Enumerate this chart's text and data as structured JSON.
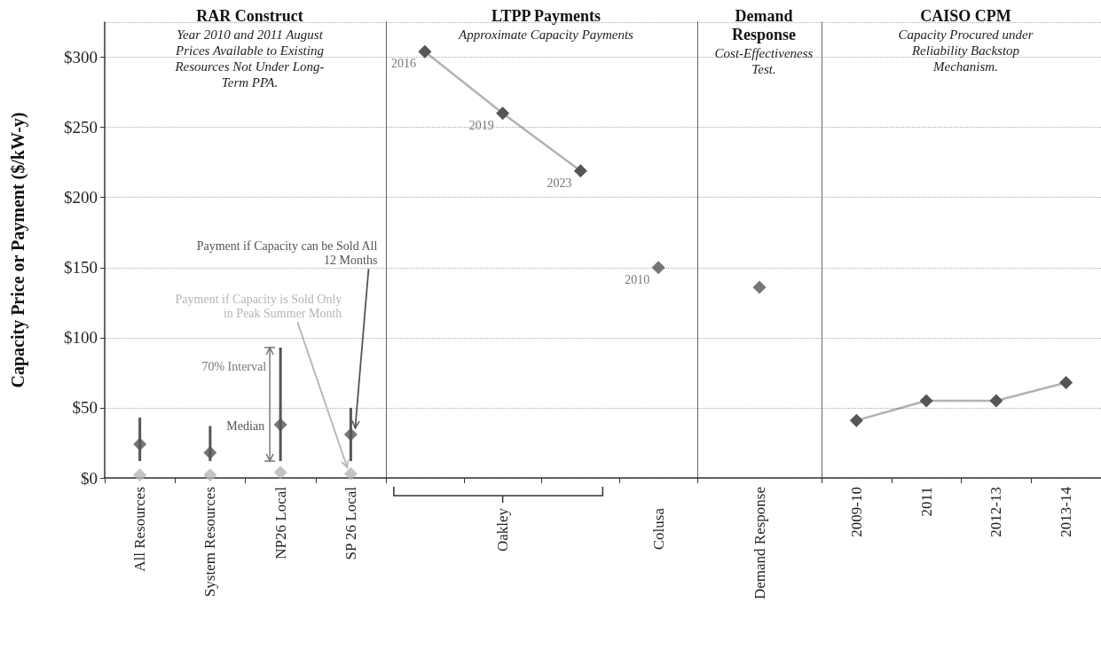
{
  "chart_data": [
    {
      "type": "scatter",
      "title": "RAR Construct",
      "subtitle": "Year 2010 and 2011 August Prices Available to Existing Resources Not Under Long-Term PPA.",
      "ylabel": "Capacity Price or Payment ($/kW-y)",
      "categories": [
        "All Resources",
        "System Resources",
        "NP26 Local",
        "SP 26 Local"
      ],
      "series": [
        {
          "color": "#555555",
          "values": [
            24,
            18,
            38,
            31
          ],
          "errors": [
            [
              12,
              43
            ],
            [
              12,
              37
            ],
            [
              12,
              93
            ],
            [
              12,
              50
            ]
          ]
        },
        {
          "color": "#b5b5b5",
          "values": [
            2,
            2,
            4,
            3
          ]
        }
      ],
      "ylim": [
        0,
        325
      ],
      "yticks": [
        {
          "value": 0,
          "label": "$0"
        },
        {
          "value": 50,
          "label": "$50"
        },
        {
          "value": 100,
          "label": "$100"
        },
        {
          "value": 150,
          "label": "$150"
        },
        {
          "value": 200,
          "label": "$200"
        },
        {
          "value": 250,
          "label": "$250"
        },
        {
          "value": 300,
          "label": "$300"
        }
      ],
      "grid": "y",
      "marker": "diamond",
      "annotations": [
        {
          "text": "Payment if Capacity can be Sold All 12 Months",
          "x": "SP 26 Local",
          "y": 31
        },
        {
          "text": "Payment if Capacity is Sold Only in Peak Summer Month",
          "x": "SP 26 Local",
          "y": 3
        },
        {
          "text": "70% Interval",
          "x": "NP26 Local",
          "y": 80
        },
        {
          "text": "Median",
          "x": "NP26 Local",
          "y": 38
        }
      ]
    },
    {
      "type": "scatter",
      "title": "LTPP Payments",
      "subtitle": "Approximate Capacity Payments",
      "categories": [
        null,
        "Oakley",
        null,
        "Colusa"
      ],
      "series": [
        {
          "type": "line",
          "color": "#555555",
          "values": [
            304,
            260,
            219,
            null
          ]
        },
        {
          "color": "#555555",
          "values": [
            null,
            null,
            null,
            150
          ]
        }
      ],
      "ylim": [
        0,
        325
      ],
      "yticks": [
        0,
        50,
        100,
        150,
        200,
        250,
        300
      ],
      "grid": "y",
      "marker": "diamond",
      "tick_labels": "x",
      "annotations": [
        "2016",
        "2019",
        "2023",
        "2010"
      ]
    },
    {
      "type": "scatter",
      "title": "Demand Response",
      "subtitle": "Cost-Effectiveness Test.",
      "categories": [
        "Demand Response"
      ],
      "series": [
        {
          "color": "#555555",
          "values": [
            136
          ]
        }
      ],
      "ylim": [
        0,
        325
      ],
      "yticks": [
        0,
        50,
        100,
        150,
        200,
        250,
        300
      ],
      "grid": "y",
      "marker": "diamond",
      "tick_labels": "x"
    },
    {
      "type": "line",
      "title": "CAISO  CPM",
      "subtitle": "Capacity Procured under Reliability Backstop Mechanism.",
      "categories": [
        "2009-10",
        "2011",
        "2012-13",
        "2013-14"
      ],
      "series": [
        {
          "color": "#555555",
          "values": [
            41,
            55,
            55,
            68
          ]
        }
      ],
      "ylim": [
        0,
        325
      ],
      "yticks": [
        0,
        50,
        100,
        150,
        200,
        250,
        300
      ],
      "grid": "y",
      "marker": "diamond",
      "tick_labels": "x"
    }
  ]
}
